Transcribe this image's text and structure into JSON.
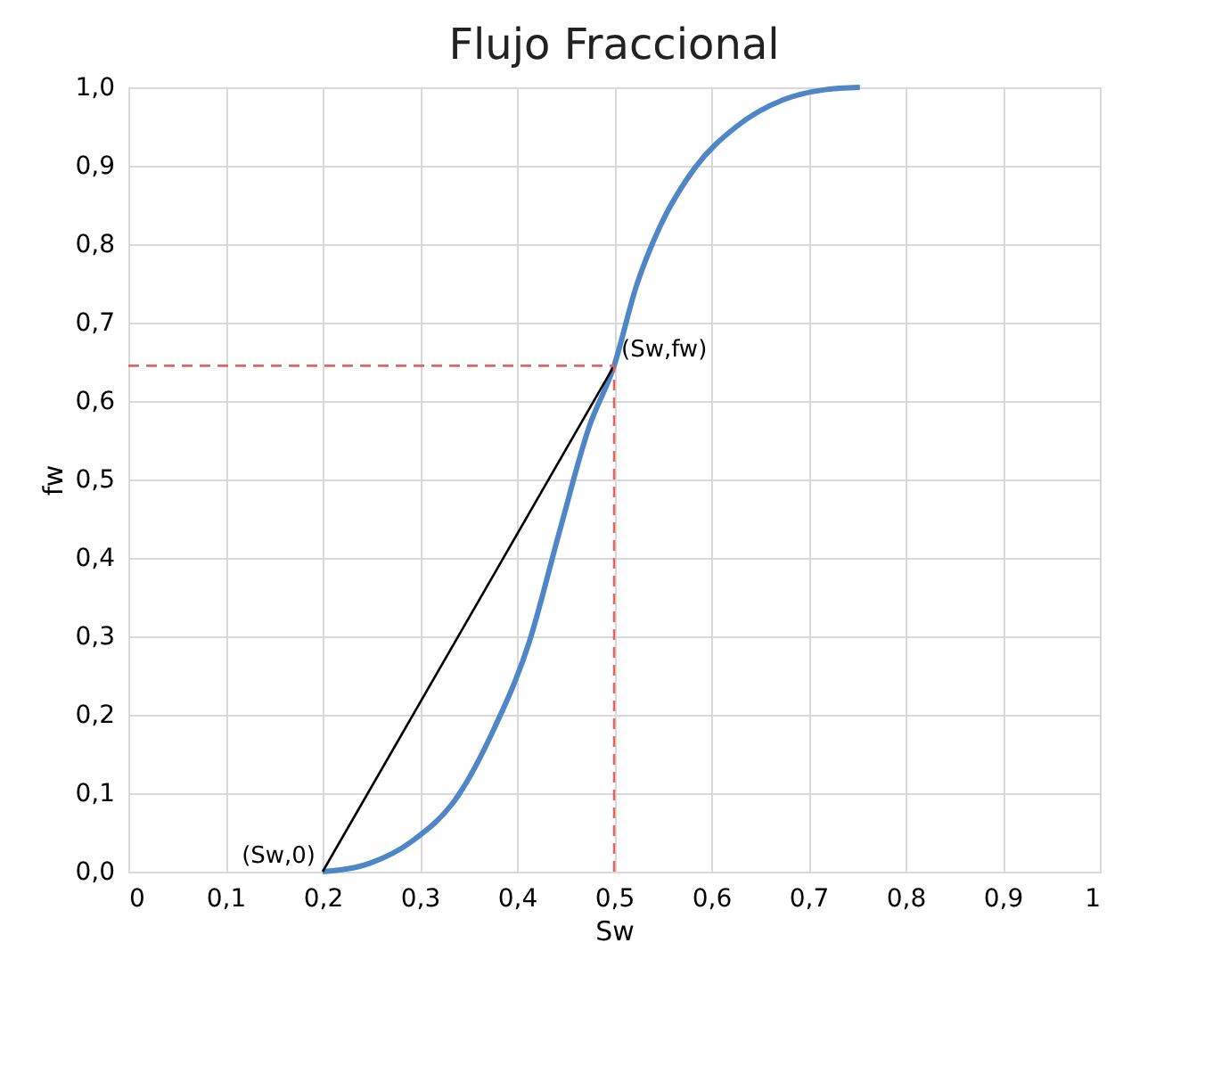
{
  "chart_data": {
    "type": "line",
    "title": "Flujo Fraccional",
    "xlabel": "Sw",
    "ylabel": "fw",
    "xlim": [
      0,
      1
    ],
    "ylim": [
      0,
      1
    ],
    "xticks": [
      0,
      {
        "value": 0.1,
        "label": "0,1"
      },
      {
        "value": 0.2,
        "label": "0,2"
      },
      {
        "value": 0.3,
        "label": "0,3"
      },
      {
        "value": 0.4,
        "label": "0,4"
      },
      {
        "value": 0.5,
        "label": "0,5"
      },
      {
        "value": 0.6,
        "label": "0,6"
      },
      {
        "value": 0.7,
        "label": "0,7"
      },
      {
        "value": 0.8,
        "label": "0,8"
      },
      {
        "value": 0.9,
        "label": "0,9"
      },
      1
    ],
    "yticks": [
      {
        "value": 0,
        "label": "0,0"
      },
      {
        "value": 0.1,
        "label": "0,1"
      },
      {
        "value": 0.2,
        "label": "0,2"
      },
      {
        "value": 0.3,
        "label": "0,3"
      },
      {
        "value": 0.4,
        "label": "0,4"
      },
      {
        "value": 0.5,
        "label": "0,5"
      },
      {
        "value": 0.6,
        "label": "0,6"
      },
      {
        "value": 0.7,
        "label": "0,7"
      },
      {
        "value": 0.8,
        "label": "0,8"
      },
      {
        "value": 0.9,
        "label": "0,9"
      },
      {
        "value": 1,
        "label": "1,0"
      }
    ],
    "grid": true,
    "marker": "none",
    "series": [
      {
        "color": "#4f86c6",
        "line_style": "solid",
        "x": [
          0.2,
          0.249,
          0.291,
          0.34,
          0.376,
          0.413,
          0.443,
          0.474,
          0.5,
          0.523,
          0.547,
          0.583,
          0.626,
          0.674,
          0.717,
          0.753
        ],
        "values": [
          0,
          0.011,
          0.038,
          0.098,
          0.181,
          0.294,
          0.43,
          0.566,
          0.645,
          0.747,
          0.822,
          0.897,
          0.95,
          0.984,
          0.997,
          1.0
        ]
      },
      {
        "color": "#000000",
        "line_style": "solid",
        "x": [
          0.2,
          0.5
        ],
        "values": [
          0,
          0.645
        ]
      },
      {
        "color": "#e06666",
        "line_style": "dashed",
        "x": [
          0,
          0.5
        ],
        "values": [
          0.645,
          0.645
        ]
      },
      {
        "color": "#e06666",
        "line_style": "dashed",
        "x": [
          0.5,
          0.5
        ],
        "values": [
          0,
          0.645
        ]
      }
    ],
    "annotations": [
      {
        "text": "(Sw,fw)",
        "x": 0.5,
        "y": 0.645
      },
      {
        "text": "(Sw,0)",
        "x": 0.2,
        "y": 0
      }
    ]
  }
}
